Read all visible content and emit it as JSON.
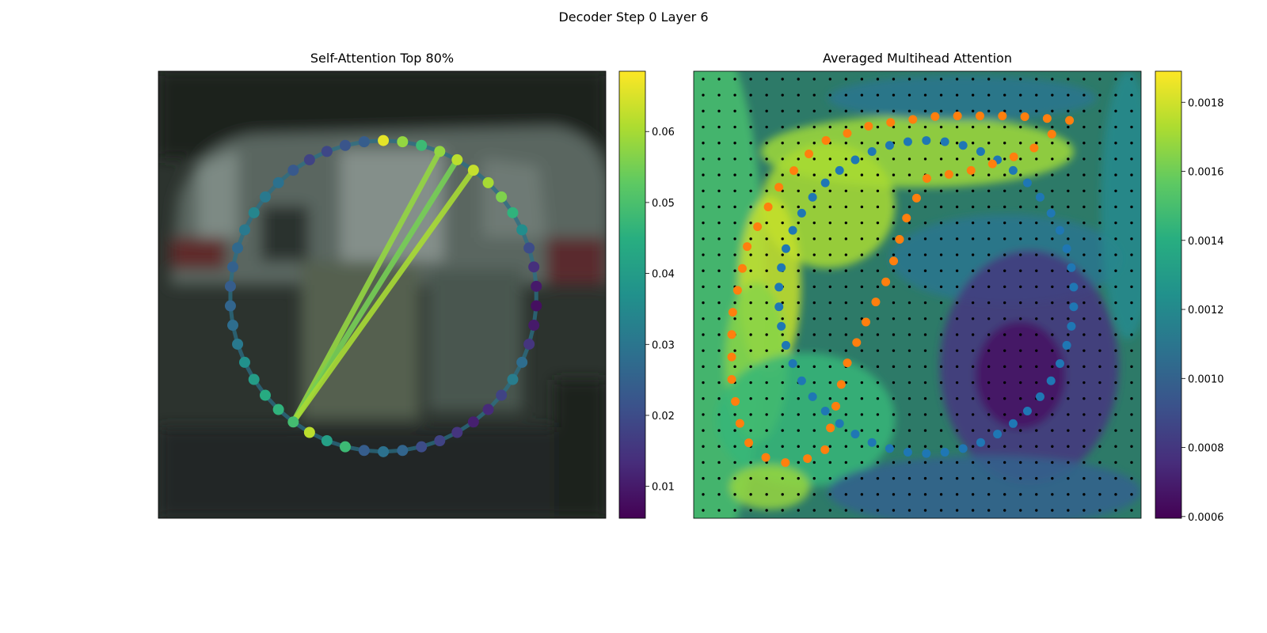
{
  "figure": {
    "suptitle": "Decoder Step 0 Layer 6"
  },
  "chart_data": [
    {
      "type": "scatter",
      "title": "Self-Attention Top 80%",
      "background": "blurred photo of a car (dark grey/green tones)",
      "colormap": "viridis",
      "colorbar": {
        "range": [
          0.0055,
          0.0685
        ],
        "ticks": [
          0.01,
          0.02,
          0.03,
          0.04,
          0.05,
          0.06
        ],
        "tick_labels": [
          "0.01",
          "0.02",
          "0.03",
          "0.04",
          "0.05",
          "0.06"
        ]
      },
      "points": {
        "count": 50,
        "layout": "closed contour (circle) of polygon vertices",
        "values": [
          0.066,
          0.058,
          0.048,
          0.058,
          0.062,
          0.063,
          0.06,
          0.056,
          0.046,
          0.036,
          0.02,
          0.014,
          0.01,
          0.008,
          0.01,
          0.015,
          0.028,
          0.032,
          0.018,
          0.013,
          0.011,
          0.015,
          0.018,
          0.02,
          0.026,
          0.029,
          0.024,
          0.048,
          0.041,
          0.062,
          0.049,
          0.046,
          0.044,
          0.04,
          0.037,
          0.031,
          0.028,
          0.026,
          0.024,
          0.025,
          0.027,
          0.031,
          0.034,
          0.031,
          0.029,
          0.023,
          0.018,
          0.019,
          0.022,
          0.024
        ]
      },
      "attention_links": [
        {
          "from": 3,
          "to": 30,
          "value": 0.058
        },
        {
          "from": 4,
          "to": 30,
          "value": 0.055
        },
        {
          "from": 5,
          "to": 30,
          "value": 0.06
        }
      ]
    },
    {
      "type": "heatmap",
      "title": "Averaged Multihead Attention",
      "colormap": "viridis",
      "overlay": "semi-transparent over blurred car photo",
      "grid": {
        "rows": 28,
        "cols": 28,
        "marker": "black dot at each cell"
      },
      "colorbar": {
        "range": [
          0.000595,
          0.00189
        ],
        "ticks": [
          0.0006,
          0.0008,
          0.001,
          0.0012,
          0.0014,
          0.0016,
          0.0018
        ],
        "tick_labels": [
          "0.0006",
          "0.0008",
          "0.0010",
          "0.0012",
          "0.0014",
          "0.0016",
          "0.0018"
        ]
      },
      "series": [
        {
          "color": "#1f77b4",
          "count": 50,
          "shape": "closed contour (ellipse)"
        },
        {
          "color": "#ff7f0e",
          "count": 50,
          "shape": "closed contour (curved 'P' shape)"
        }
      ]
    }
  ]
}
